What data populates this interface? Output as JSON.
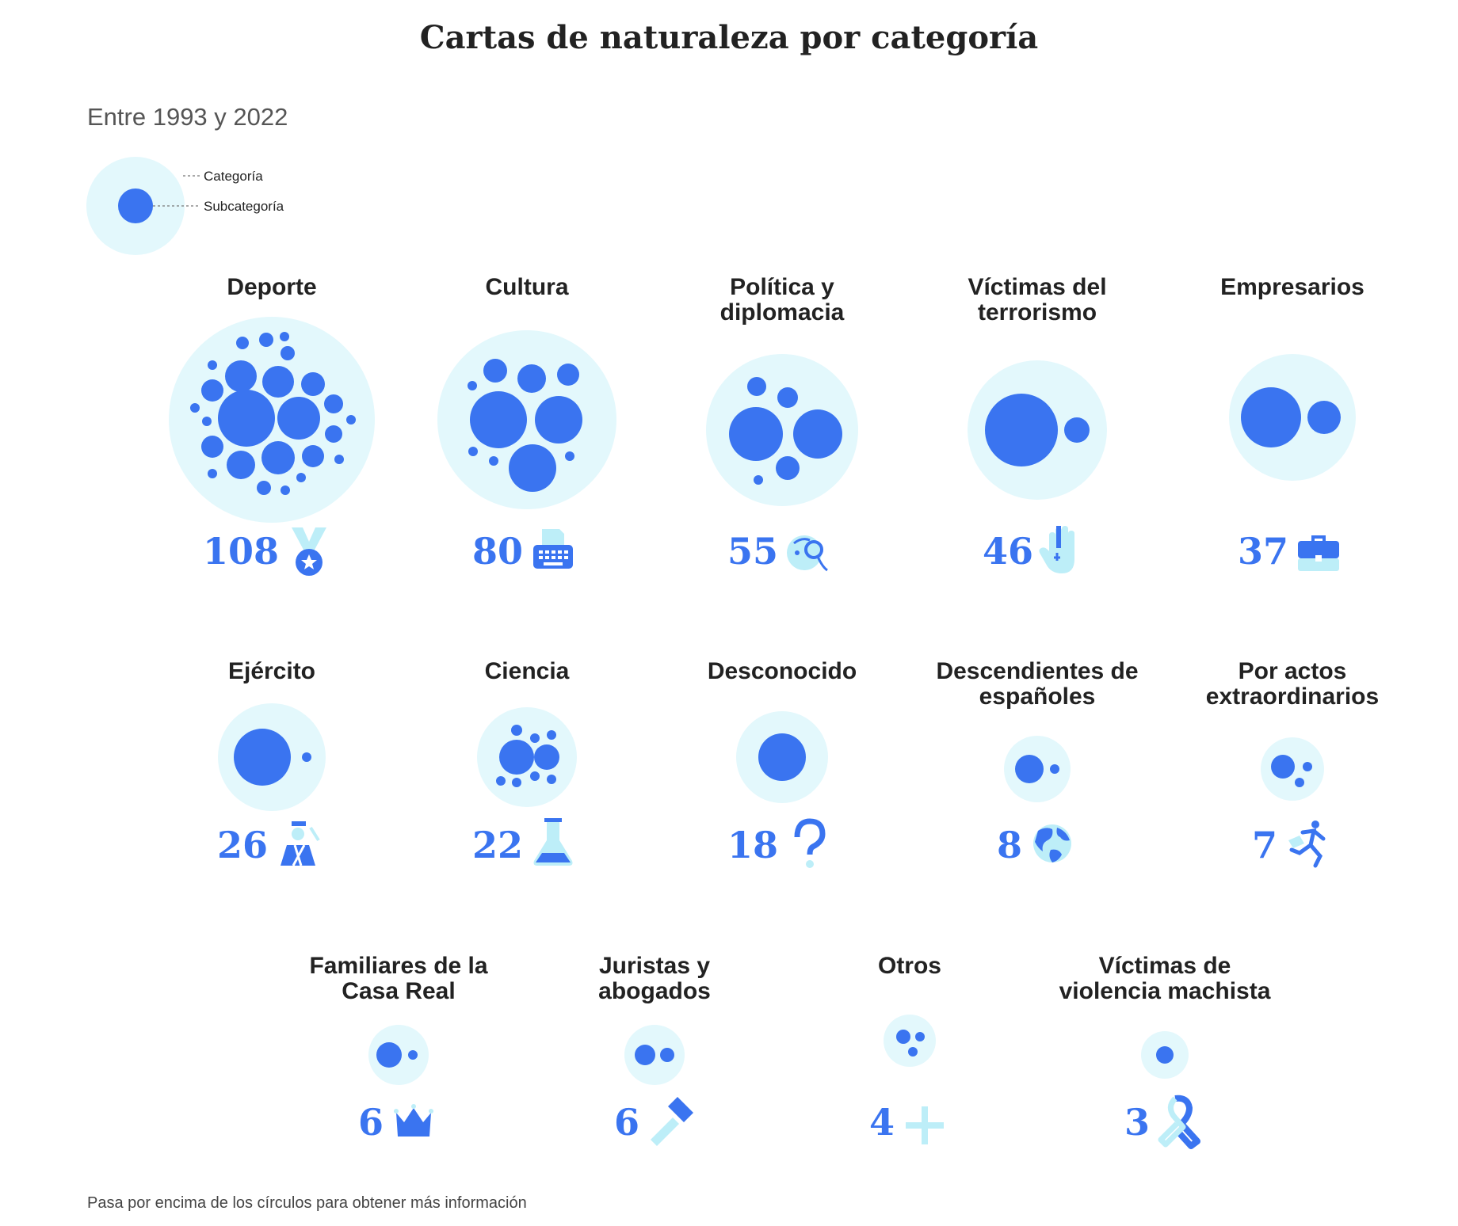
{
  "title": "Cartas de naturaleza por categoría",
  "subtitle": "Entre 1993 y 2022",
  "legend": {
    "category_label": "Categoría",
    "subcategory_label": "Subcategoría"
  },
  "footnote": "Pasa por encima de los círculos para obtener más información",
  "colors": {
    "outer": "#e3f8fc",
    "inner": "#3a74f0",
    "icon_light": "#bdeef8",
    "text": "#222222"
  },
  "chart_data": {
    "type": "packed-bubble",
    "title": "Cartas de naturaleza por categoría",
    "subtitle": "Entre 1993 y 2022",
    "categories": [
      {
        "name": "Deporte",
        "lines": [
          "Deporte"
        ],
        "value": 108,
        "icon": "medal-icon"
      },
      {
        "name": "Cultura",
        "lines": [
          "Cultura"
        ],
        "value": 80,
        "icon": "typewriter-icon"
      },
      {
        "name": "Política y diplomacia",
        "lines": [
          "Política y",
          "diplomacia"
        ],
        "value": 55,
        "icon": "monocle-icon"
      },
      {
        "name": "Víctimas del terrorismo",
        "lines": [
          "Víctimas del",
          "terrorismo"
        ],
        "value": 46,
        "icon": "hand-icon"
      },
      {
        "name": "Empresarios",
        "lines": [
          "Empresarios"
        ],
        "value": 37,
        "icon": "briefcase-icon"
      },
      {
        "name": "Ejército",
        "lines": [
          "Ejército"
        ],
        "value": 26,
        "icon": "soldier-icon"
      },
      {
        "name": "Ciencia",
        "lines": [
          "Ciencia"
        ],
        "value": 22,
        "icon": "flask-icon"
      },
      {
        "name": "Desconocido",
        "lines": [
          "Desconocido"
        ],
        "value": 18,
        "icon": "question-icon"
      },
      {
        "name": "Descendientes de españoles",
        "lines": [
          "Descendientes de",
          "españoles"
        ],
        "value": 8,
        "icon": "globe-icon"
      },
      {
        "name": "Por actos extraordinarios",
        "lines": [
          "Por actos",
          "extraordinarios"
        ],
        "value": 7,
        "icon": "runner-icon"
      },
      {
        "name": "Familiares de la Casa Real",
        "lines": [
          "Familiares de la",
          "Casa Real"
        ],
        "value": 6,
        "icon": "crown-icon"
      },
      {
        "name": "Juristas y abogados",
        "lines": [
          "Juristas y",
          "abogados"
        ],
        "value": 6,
        "icon": "gavel-icon"
      },
      {
        "name": "Otros",
        "lines": [
          "Otros"
        ],
        "value": 4,
        "icon": "plus-icon"
      },
      {
        "name": "Víctimas de violencia machista",
        "lines": [
          "Víctimas de",
          "violencia machista"
        ],
        "value": 3,
        "icon": "ribbon-icon"
      }
    ]
  }
}
